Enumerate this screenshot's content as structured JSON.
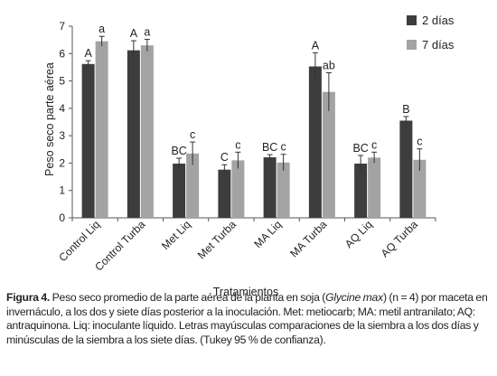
{
  "chart_data": {
    "type": "bar",
    "ylabel": "Peso seco parte aérea",
    "xlabel": "Tratamientos",
    "ylim": [
      0,
      7
    ],
    "yticks": [
      0,
      1,
      2,
      3,
      4,
      5,
      6,
      7
    ],
    "categories": [
      "Control Liq",
      "Control Turba",
      "Met Liq",
      "Met Turba",
      "MA Liq",
      "MA Turba",
      "AQ Liq",
      "AQ Turba"
    ],
    "series": [
      {
        "name": "2 días",
        "color": "#3d3d3d",
        "values": [
          5.62,
          6.12,
          1.98,
          1.76,
          2.21,
          5.53,
          1.98,
          3.55
        ],
        "errors": [
          0.12,
          0.35,
          0.2,
          0.18,
          0.1,
          0.5,
          0.3,
          0.15
        ],
        "letters": [
          "A",
          "A",
          "BC",
          "C",
          "BC",
          "A",
          "BC",
          "B"
        ]
      },
      {
        "name": "7 días",
        "color": "#a3a3a3",
        "values": [
          6.45,
          6.3,
          2.35,
          2.1,
          2.02,
          4.6,
          2.2,
          2.12
        ],
        "errors": [
          0.18,
          0.22,
          0.42,
          0.3,
          0.3,
          0.7,
          0.2,
          0.4
        ],
        "letters": [
          "a",
          "a",
          "c",
          "c",
          "c",
          "ab",
          "c",
          "c"
        ]
      }
    ],
    "legend_position": "top-right",
    "grid": false
  },
  "caption": {
    "figure_label": "Figura 4.",
    "text_before_species": " Peso seco promedio de la parte aérea de la planta en soja (",
    "species": "Glycine max",
    "text_after_species": ") (n = 4) por maceta en invernáculo, a los dos y siete  días posterior a la inoculación. Met: metiocarb; MA: metil antranilato; AQ: antraquinona. Liq: inoculante líquido. Letras mayúsculas comparaciones de la siembra a los dos días y minúsculas de la siembra a los siete días. (Tukey 95 % de confianza)."
  }
}
